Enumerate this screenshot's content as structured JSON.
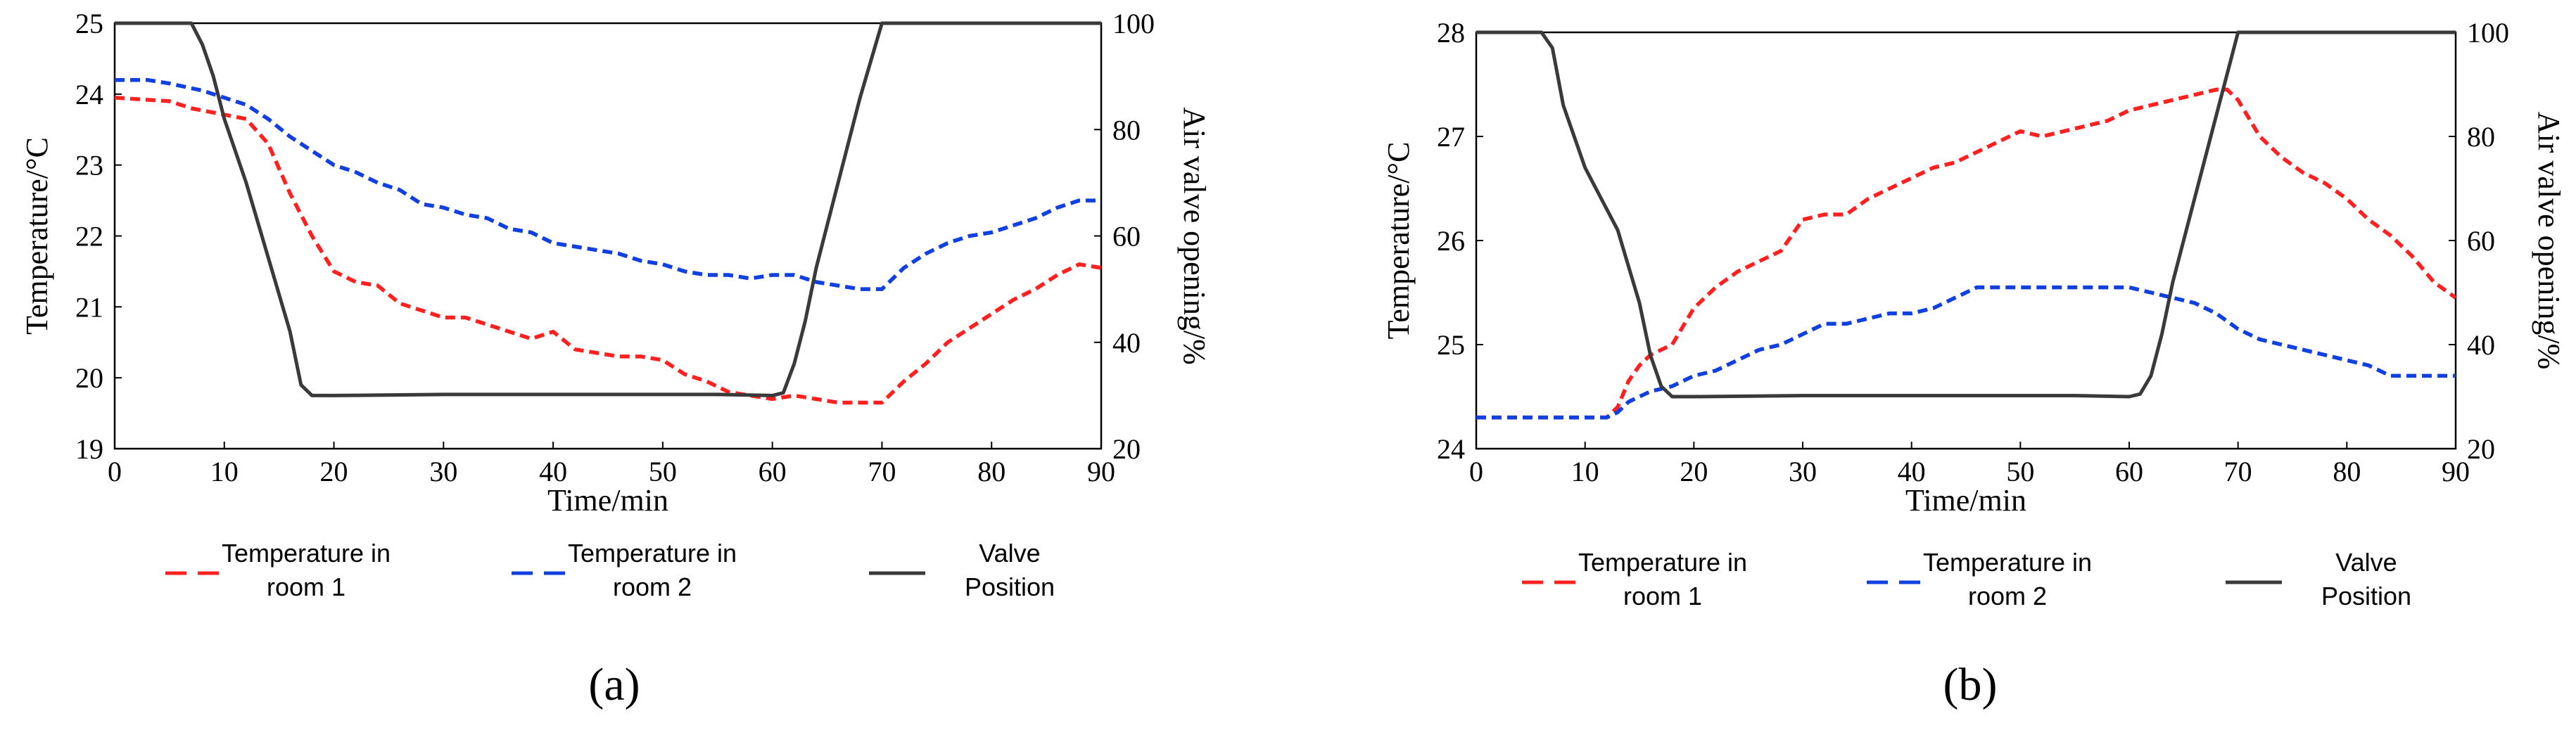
{
  "chart_data": [
    {
      "type": "line",
      "panel_label": "(a)",
      "xlabel": "Time/min",
      "ylabel": "Temperature/°C",
      "y2label": "Air valve opening/%",
      "xlim": [
        0,
        90
      ],
      "ylim": [
        19,
        25
      ],
      "y2lim": [
        20,
        100
      ],
      "xticks": [
        0,
        10,
        20,
        30,
        40,
        50,
        60,
        70,
        80,
        90
      ],
      "yticks": [
        19,
        20,
        21,
        22,
        23,
        24,
        25
      ],
      "y2ticks": [
        20,
        40,
        60,
        80,
        100
      ],
      "legend_position": "bottom",
      "series": [
        {
          "name": "Temperature in room 1",
          "axis": "left",
          "style": "dashed",
          "color": "#ff2020",
          "x": [
            0,
            5,
            7,
            12,
            14,
            16,
            18,
            20,
            22,
            24,
            26,
            28,
            30,
            32,
            34,
            36,
            38,
            40,
            42,
            44,
            46,
            48,
            50,
            52,
            54,
            56,
            58,
            60,
            62,
            64,
            66,
            68,
            70,
            72,
            74,
            76,
            78,
            80,
            82,
            84,
            86,
            88,
            90
          ],
          "y": [
            23.95,
            23.9,
            23.8,
            23.65,
            23.3,
            22.6,
            22.0,
            21.5,
            21.35,
            21.3,
            21.05,
            20.95,
            20.85,
            20.85,
            20.75,
            20.65,
            20.55,
            20.65,
            20.4,
            20.35,
            20.3,
            20.3,
            20.25,
            20.05,
            19.95,
            19.8,
            19.75,
            19.7,
            19.75,
            19.7,
            19.65,
            19.65,
            19.65,
            19.95,
            20.2,
            20.5,
            20.7,
            20.9,
            21.1,
            21.25,
            21.45,
            21.6,
            21.55
          ]
        },
        {
          "name": "Temperature in room 2",
          "axis": "left",
          "style": "dashed",
          "color": "#1040e0",
          "x": [
            0,
            3,
            5,
            8,
            10,
            12,
            14,
            16,
            18,
            20,
            22,
            24,
            26,
            28,
            30,
            32,
            34,
            36,
            38,
            40,
            42,
            44,
            46,
            48,
            50,
            52,
            54,
            56,
            58,
            60,
            62,
            64,
            66,
            68,
            70,
            72,
            74,
            76,
            78,
            80,
            82,
            84,
            86,
            88,
            90
          ],
          "y": [
            24.2,
            24.2,
            24.15,
            24.05,
            23.95,
            23.85,
            23.65,
            23.4,
            23.2,
            23.0,
            22.9,
            22.75,
            22.65,
            22.45,
            22.4,
            22.3,
            22.25,
            22.1,
            22.05,
            21.9,
            21.85,
            21.8,
            21.75,
            21.65,
            21.6,
            21.5,
            21.45,
            21.45,
            21.4,
            21.45,
            21.45,
            21.35,
            21.3,
            21.25,
            21.25,
            21.55,
            21.75,
            21.9,
            22.0,
            22.05,
            22.15,
            22.25,
            22.4,
            22.5,
            22.5
          ]
        },
        {
          "name": "Valve Position",
          "axis": "right",
          "style": "solid",
          "color": "#3a3a3a",
          "x": [
            0,
            7,
            8,
            9,
            10,
            12,
            14,
            16,
            17,
            18,
            20,
            30,
            40,
            50,
            55,
            60,
            61,
            62,
            63,
            64,
            66,
            68,
            70,
            80,
            90
          ],
          "y": [
            100,
            100,
            96,
            90,
            82,
            70,
            56,
            42,
            32,
            30,
            30,
            30.2,
            30.2,
            30.2,
            30.2,
            30,
            30.5,
            36,
            44,
            54,
            70,
            86,
            100,
            100,
            100
          ]
        }
      ]
    },
    {
      "type": "line",
      "panel_label": "(b)",
      "xlabel": "Time/min",
      "ylabel": "Temperature/°C",
      "y2label": "Air valve opening/%",
      "xlim": [
        0,
        90
      ],
      "ylim": [
        24,
        28
      ],
      "y2lim": [
        20,
        100
      ],
      "xticks": [
        0,
        10,
        20,
        30,
        40,
        50,
        60,
        70,
        80,
        90
      ],
      "yticks": [
        24,
        25,
        26,
        27,
        28
      ],
      "y2ticks": [
        20,
        40,
        60,
        80,
        100
      ],
      "legend_position": "bottom",
      "series": [
        {
          "name": "Temperature in room 1",
          "axis": "left",
          "style": "dashed",
          "color": "#ff2020",
          "x": [
            0,
            5,
            10,
            12,
            13,
            14,
            15,
            16,
            18,
            20,
            22,
            24,
            26,
            28,
            30,
            32,
            34,
            36,
            38,
            40,
            42,
            44,
            46,
            48,
            50,
            52,
            54,
            56,
            58,
            60,
            62,
            64,
            66,
            68,
            69,
            70,
            72,
            74,
            76,
            78,
            80,
            82,
            84,
            86,
            88,
            90
          ],
          "y": [
            24.3,
            24.3,
            24.3,
            24.3,
            24.4,
            24.65,
            24.8,
            24.9,
            25.0,
            25.35,
            25.55,
            25.7,
            25.8,
            25.9,
            26.2,
            26.25,
            26.25,
            26.4,
            26.5,
            26.6,
            26.7,
            26.75,
            26.85,
            26.95,
            27.05,
            27.0,
            27.05,
            27.1,
            27.15,
            27.25,
            27.3,
            27.35,
            27.4,
            27.45,
            27.45,
            27.35,
            27.0,
            26.8,
            26.65,
            26.55,
            26.4,
            26.2,
            26.05,
            25.85,
            25.6,
            25.45
          ]
        },
        {
          "name": "Temperature in room 2",
          "axis": "left",
          "style": "dashed",
          "color": "#1040e0",
          "x": [
            0,
            5,
            10,
            12,
            13,
            14,
            16,
            18,
            20,
            22,
            24,
            26,
            28,
            30,
            32,
            34,
            36,
            38,
            40,
            42,
            44,
            46,
            48,
            50,
            52,
            54,
            56,
            58,
            60,
            62,
            64,
            66,
            68,
            70,
            72,
            74,
            76,
            78,
            80,
            82,
            84,
            86,
            88,
            90
          ],
          "y": [
            24.3,
            24.3,
            24.3,
            24.3,
            24.35,
            24.45,
            24.55,
            24.6,
            24.7,
            24.75,
            24.85,
            24.95,
            25.0,
            25.1,
            25.2,
            25.2,
            25.25,
            25.3,
            25.3,
            25.35,
            25.45,
            25.55,
            25.55,
            25.55,
            25.55,
            25.55,
            25.55,
            25.55,
            25.55,
            25.5,
            25.45,
            25.4,
            25.3,
            25.15,
            25.05,
            25.0,
            24.95,
            24.9,
            24.85,
            24.8,
            24.7,
            24.7,
            24.7,
            24.7
          ]
        },
        {
          "name": "Valve Position",
          "axis": "right",
          "style": "solid",
          "color": "#3a3a3a",
          "x": [
            0,
            6,
            7,
            8,
            9,
            10,
            11,
            12,
            13,
            14,
            15,
            16,
            17,
            18,
            20,
            30,
            40,
            50,
            55,
            60,
            61,
            62,
            63,
            64,
            66,
            68,
            70,
            80,
            90
          ],
          "y": [
            100,
            100,
            97,
            86,
            80,
            74,
            70,
            66,
            62,
            55,
            48,
            38,
            32,
            30,
            30,
            30.2,
            30.2,
            30.2,
            30.2,
            30,
            30.5,
            34,
            42,
            52,
            68,
            84,
            100,
            100,
            100
          ]
        }
      ]
    }
  ]
}
